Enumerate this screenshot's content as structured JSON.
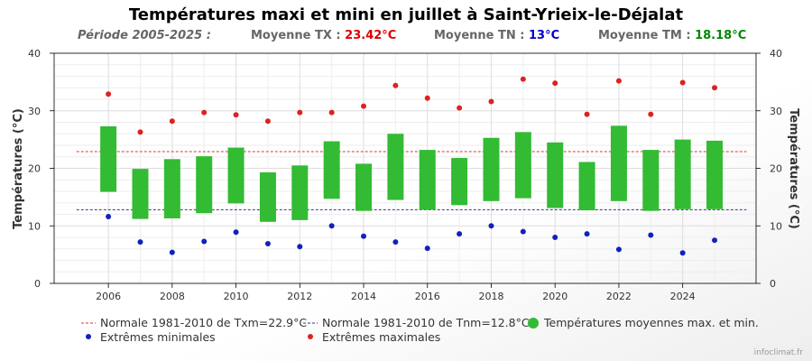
{
  "title": "Températures maxi et mini en juillet à Saint-Yrieix-le-Déjalat",
  "subtitle": {
    "periode": "Période 2005-2025 :",
    "tx_label": "Moyenne TX :",
    "tx_value": "23.42°C",
    "tn_label": "Moyenne TN :",
    "tn_value": "13°C",
    "tm_label": "Moyenne TM :",
    "tm_value": "18.18°C"
  },
  "credit": "infoclimat.fr",
  "colors": {
    "bar": "#33bb33",
    "max": "#dd2222",
    "min": "#1122bb",
    "normal_max": "#dd3333",
    "normal_min": "#333388",
    "tx_text": "#dd0000",
    "tn_text": "#0000cc",
    "tm_text": "#008800"
  },
  "chart_data": {
    "type": "floating-bar+scatter",
    "x": [
      2006,
      2007,
      2008,
      2009,
      2010,
      2011,
      2012,
      2013,
      2014,
      2015,
      2016,
      2017,
      2018,
      2019,
      2020,
      2021,
      2022,
      2023,
      2024,
      2025
    ],
    "xticks": [
      "2006",
      "2008",
      "2010",
      "2012",
      "2014",
      "2016",
      "2018",
      "2020",
      "2022",
      "2024"
    ],
    "xlim": [
      2004.3,
      2026.3
    ],
    "ylim": [
      0,
      40
    ],
    "yticks": [
      "0",
      "10",
      "20",
      "30",
      "40"
    ],
    "ylabel_left": "Températures (°C)",
    "ylabel_right": "Températures (°C)",
    "series": [
      {
        "name": "Températures moyennes max. et min.",
        "type": "floating-bar",
        "max": [
          27.3,
          19.9,
          21.6,
          22.1,
          23.6,
          19.3,
          20.5,
          24.7,
          20.8,
          26.0,
          23.2,
          21.8,
          25.3,
          26.3,
          24.5,
          21.1,
          27.4,
          23.2,
          25.0,
          24.8
        ],
        "min": [
          15.9,
          11.2,
          11.3,
          12.2,
          13.9,
          10.7,
          11.0,
          14.7,
          12.6,
          14.5,
          12.8,
          13.6,
          14.3,
          14.8,
          13.1,
          12.7,
          14.3,
          12.6,
          12.9,
          12.9
        ]
      },
      {
        "name": "Extrêmes maximales",
        "type": "scatter",
        "values": [
          32.9,
          26.3,
          28.2,
          29.7,
          29.3,
          28.2,
          29.7,
          29.7,
          30.8,
          34.4,
          32.2,
          30.5,
          31.6,
          35.5,
          34.8,
          29.4,
          35.2,
          29.4,
          34.9,
          34.0
        ]
      },
      {
        "name": "Extrêmes minimales",
        "type": "scatter",
        "values": [
          11.6,
          7.2,
          5.4,
          7.3,
          8.9,
          6.9,
          6.4,
          10.0,
          8.2,
          7.2,
          6.1,
          8.6,
          10.0,
          9.0,
          8.0,
          8.6,
          5.9,
          8.4,
          5.3,
          7.5
        ]
      },
      {
        "name": "Normale 1981-2010 de Txm=22.9°C",
        "type": "hline",
        "value": 22.9,
        "x_range": [
          2005,
          2026
        ]
      },
      {
        "name": "Normale 1981-2010 de Tnm=12.8°C",
        "type": "hline",
        "value": 12.8,
        "x_range": [
          2005,
          2026
        ]
      }
    ],
    "legend": "bottom",
    "grid": true
  }
}
